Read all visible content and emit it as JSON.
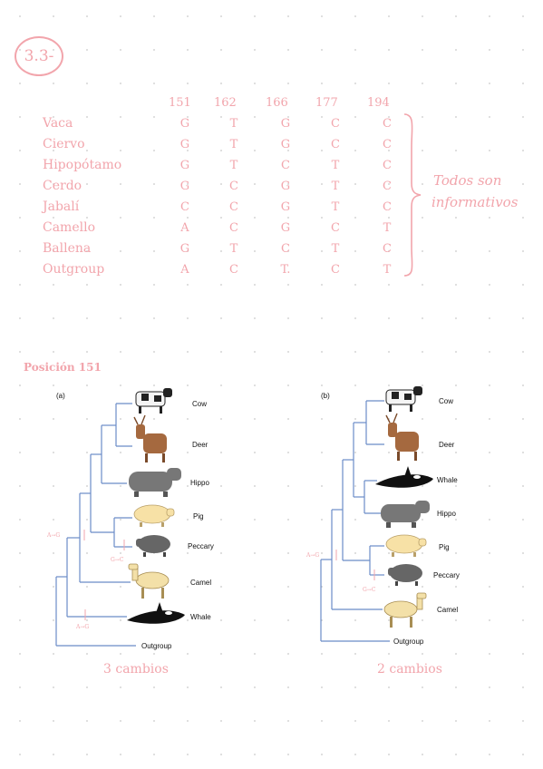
{
  "exercise": "3.3-",
  "positions": [
    "151",
    "162",
    "166",
    "177",
    "194"
  ],
  "species": [
    {
      "name": "Vaca",
      "bases": [
        "G",
        "T",
        "G",
        "C",
        "C"
      ]
    },
    {
      "name": "Ciervo",
      "bases": [
        "G",
        "T",
        "G",
        "C",
        "C"
      ]
    },
    {
      "name": "Hipopótamo",
      "bases": [
        "G",
        "T",
        "C",
        "T",
        "C"
      ]
    },
    {
      "name": "Cerdo",
      "bases": [
        "G",
        "C",
        "G",
        "T",
        "C"
      ]
    },
    {
      "name": "Jabalí",
      "bases": [
        "C",
        "C",
        "G",
        "T",
        "C"
      ]
    },
    {
      "name": "Camello",
      "bases": [
        "A",
        "C",
        "G",
        "C",
        "T"
      ]
    },
    {
      "name": "Ballena",
      "bases": [
        "G",
        "T",
        "C",
        "T",
        "C"
      ]
    },
    {
      "name": "Outgroup",
      "bases": [
        "A",
        "C",
        "T.",
        "C",
        "T"
      ]
    }
  ],
  "note_line1": "Todos son",
  "note_line2": "informativos",
  "section_title": "Posición 151",
  "tree_a": {
    "panel": "(a)",
    "taxa": [
      "Cow",
      "Deer",
      "Hippo",
      "Pig",
      "Peccary",
      "Camel",
      "Whale",
      "Outgroup"
    ],
    "marks": [
      "A→G",
      "G→C",
      "A→G"
    ],
    "caption": "3 cambios"
  },
  "tree_b": {
    "panel": "(b)",
    "taxa": [
      "Cow",
      "Deer",
      "Whale",
      "Hippo",
      "Pig",
      "Peccary",
      "Camel",
      "Outgroup"
    ],
    "marks": [
      "A→G",
      "G→C"
    ],
    "caption": "2 cambios"
  },
  "colors": {
    "ink": "#f2a5ac",
    "tree": "#6b8cc7"
  }
}
